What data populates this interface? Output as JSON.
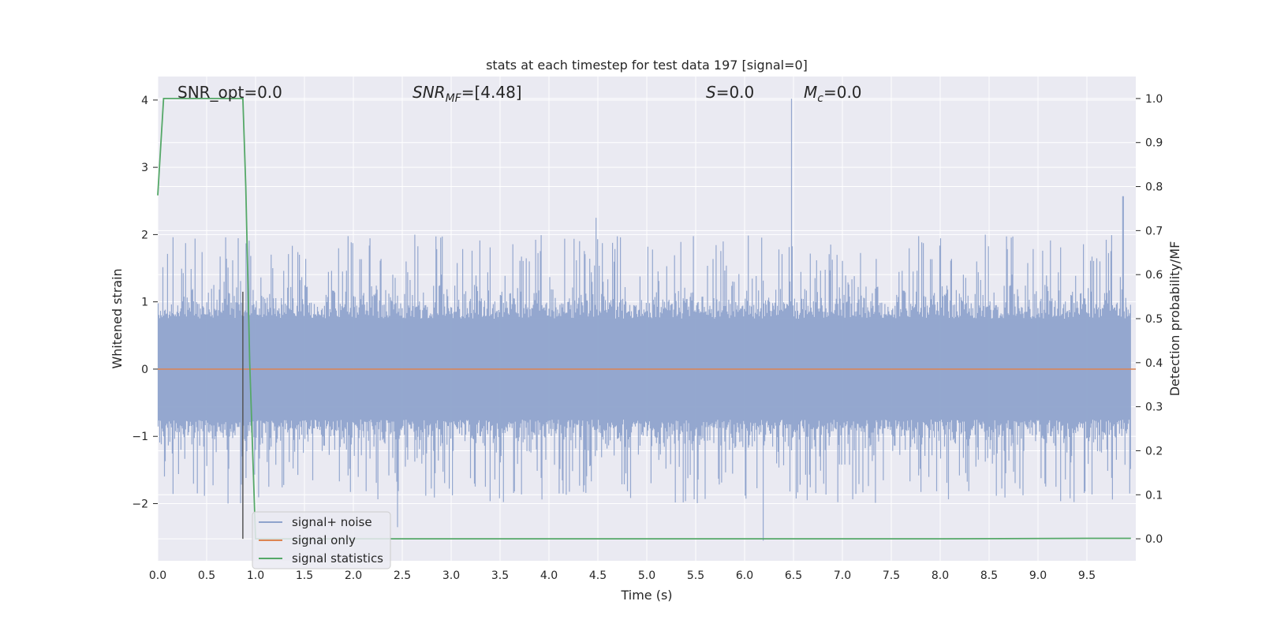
{
  "chart_data": {
    "type": "line",
    "title": "stats at each timestep for test data 197 [signal=0]",
    "xlabel": "Time (s)",
    "ylabel_left": "Whitened strain",
    "ylabel_right": "Detection probability/MF",
    "xlim": [
      0.0,
      10.0
    ],
    "ylim_left": [
      -2.85,
      4.35
    ],
    "ylim_right": [
      -0.05,
      1.05
    ],
    "x_ticks": [
      "0.0",
      "0.5",
      "1.0",
      "1.5",
      "2.0",
      "2.5",
      "3.0",
      "3.5",
      "4.0",
      "4.5",
      "5.0",
      "5.5",
      "6.0",
      "6.5",
      "7.0",
      "7.5",
      "8.0",
      "8.5",
      "9.0",
      "9.5"
    ],
    "y_ticks_left": [
      "4",
      "3",
      "2",
      "1",
      "0",
      "−1",
      "−2"
    ],
    "y_ticks_right": [
      "1.0",
      "0.9",
      "0.8",
      "0.7",
      "0.6",
      "0.5",
      "0.4",
      "0.3",
      "0.2",
      "0.1",
      "0.0"
    ],
    "grid": true,
    "legend_position": "lower-left",
    "annotations": [
      {
        "id": "snr-opt",
        "text": "SNR_opt=0.0"
      },
      {
        "id": "snr-mf",
        "text": "SNR_MF=[4.48]"
      },
      {
        "id": "s",
        "text": "S=0.0"
      },
      {
        "id": "mc",
        "text": "M_c=0.0"
      }
    ],
    "vertical_marker_x": 0.87,
    "series": [
      {
        "name": "signal+ noise",
        "color": "#8fa3cc",
        "axis": "left",
        "description_values": {
          "envelope_typical": [
            -1.3,
            1.3
          ],
          "extreme_peaks": [
            {
              "x": 6.48,
              "y": 4.02
            },
            {
              "x": 9.87,
              "y": 2.57
            },
            {
              "x": 4.48,
              "y": 2.25
            },
            {
              "x": 6.19,
              "y": -2.55
            },
            {
              "x": 2.45,
              "y": -2.35
            }
          ]
        }
      },
      {
        "name": "signal only",
        "color": "#dd8452",
        "axis": "left",
        "x": [
          0.0,
          10.0
        ],
        "y": [
          0.0,
          0.0
        ]
      },
      {
        "name": "signal statistics",
        "color": "#55a868",
        "axis": "right",
        "x": [
          0.0,
          0.06,
          0.12,
          0.2,
          0.5,
          0.87,
          0.9,
          0.94,
          1.0,
          1.2,
          2.0,
          5.0,
          8.0,
          9.5,
          9.95
        ],
        "y": [
          0.78,
          1.0,
          1.0,
          1.0,
          1.0,
          1.0,
          0.8,
          0.4,
          0.0,
          0.0,
          0.0,
          0.0,
          0.0,
          0.001,
          0.001
        ]
      }
    ]
  }
}
